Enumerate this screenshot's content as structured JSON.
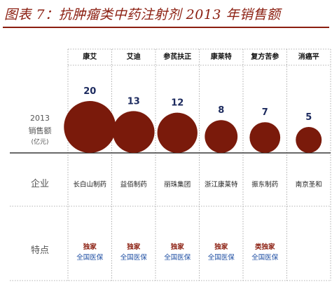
{
  "title": "图表 7：抗肿瘤类中药注射剂 2013 年销售额",
  "row_labels": {
    "sales_year": "2013",
    "sales": "销售额",
    "sales_unit": "(亿元)",
    "company": "企业",
    "features": "特点"
  },
  "colors": {
    "bubble": "#7a1a0b",
    "title": "#8b1e10",
    "value_text": "#1c2a5e",
    "feature_exclusive": "#8b1e10",
    "feature_insurance": "#1f4fa3"
  },
  "chart_data": {
    "type": "bubble",
    "title": "图表 7：抗肿瘤类中药注射剂 2013 年销售额",
    "categories": [
      "康艾",
      "艾迪",
      "参芪扶正",
      "康莱特",
      "复方苦参",
      "消癌平"
    ],
    "values": [
      20,
      13,
      12,
      8,
      7,
      5
    ],
    "companies": [
      "长白山制药",
      "益佰制药",
      "丽珠集团",
      "浙江康莱特",
      "振东制药",
      "南京圣和"
    ],
    "features": [
      [
        "独家",
        "全国医保"
      ],
      [
        "独家",
        "全国医保"
      ],
      [
        "独家",
        "全国医保"
      ],
      [
        "独家",
        "全国医保"
      ],
      [
        "类独家",
        "全国医保"
      ],
      [
        "",
        ""
      ]
    ]
  }
}
